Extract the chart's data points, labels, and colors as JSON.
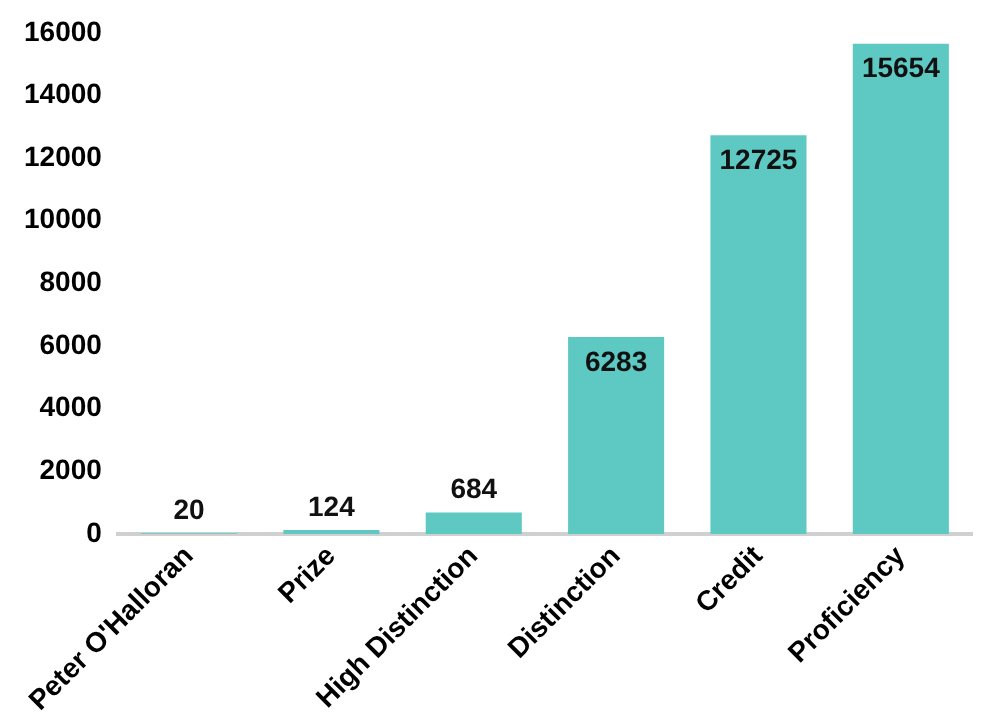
{
  "chart_data": {
    "type": "bar",
    "categories": [
      "Peter O'Halloran",
      "Prize",
      "High Distinction",
      "Distinction",
      "Credit",
      "Proficiency"
    ],
    "values": [
      20,
      124,
      684,
      6283,
      12725,
      15654
    ],
    "color": "#5ec8c3",
    "ylim": [
      0,
      16000
    ],
    "yticks": [
      0,
      2000,
      4000,
      6000,
      8000,
      10000,
      12000,
      14000,
      16000
    ],
    "grid": false,
    "legend": false,
    "data_labels": true
  }
}
